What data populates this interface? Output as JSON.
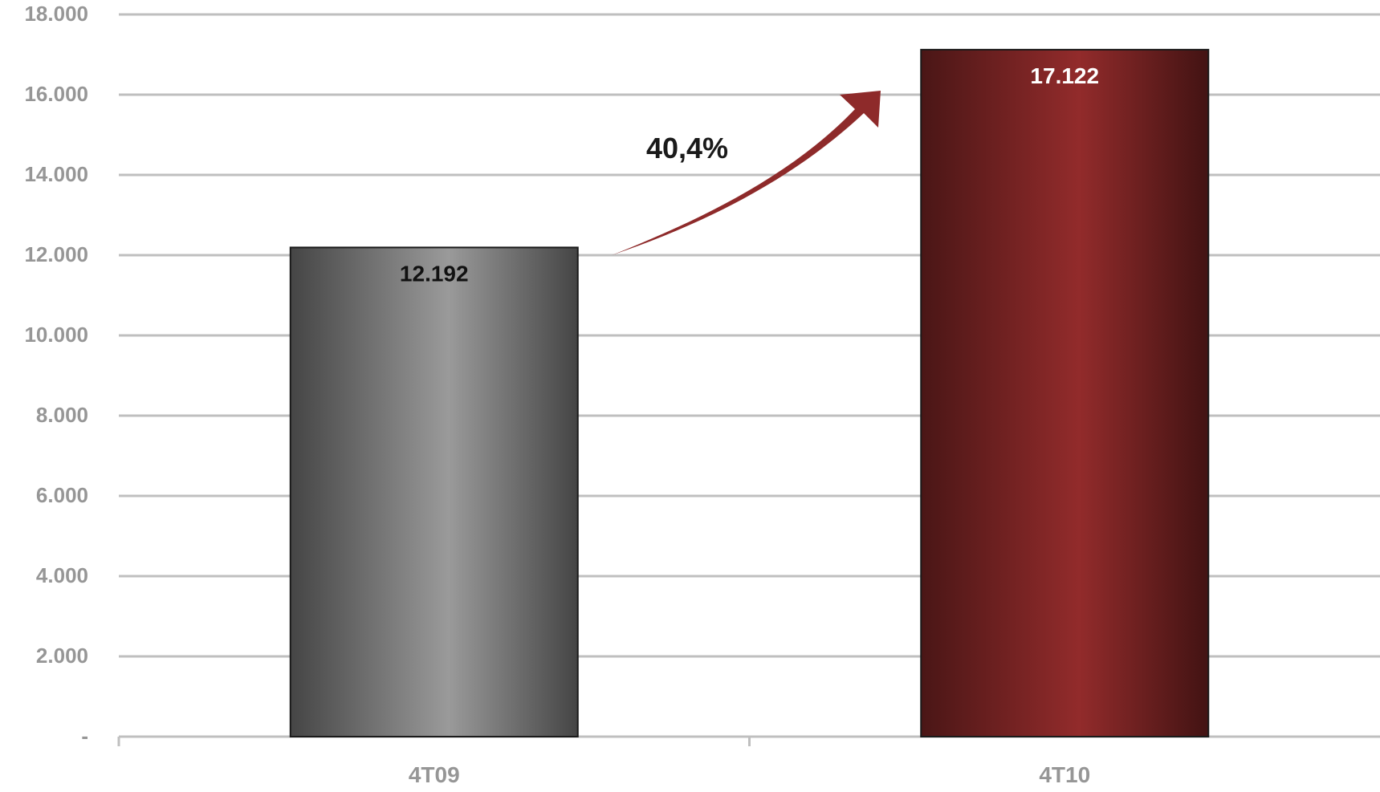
{
  "chart_data": {
    "type": "bar",
    "categories": [
      "4T09",
      "4T10"
    ],
    "values": [
      12192,
      17122
    ],
    "value_labels": [
      "12.192",
      "17.122"
    ],
    "ylim": [
      0,
      18000
    ],
    "yticks": [
      0,
      2000,
      4000,
      6000,
      8000,
      10000,
      12000,
      14000,
      16000,
      18000
    ],
    "ytick_labels": [
      "-",
      "2.000",
      "4.000",
      "6.000",
      "8.000",
      "10.000",
      "12.000",
      "14.000",
      "16.000",
      "18.000"
    ],
    "grid": true,
    "annotation": "40,4%",
    "colors": {
      "bar_4T09": "#8f8f8f",
      "bar_4T10": "#8e2a2a",
      "arrow": "#8e2a2a",
      "grid": "#bfbfbf",
      "tick_label": "#969696"
    }
  }
}
